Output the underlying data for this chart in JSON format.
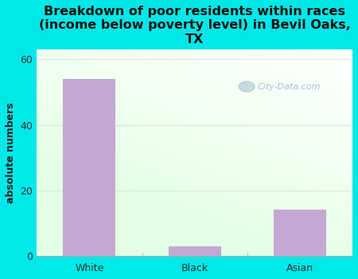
{
  "title": "Breakdown of poor residents within races\n(income below poverty level) in Bevil Oaks,\nTX",
  "categories": [
    "White",
    "Black",
    "Asian"
  ],
  "values": [
    54,
    3,
    14
  ],
  "bar_color": "#c4a8d4",
  "bar_edgecolor": "#c4a8d4",
  "ylabel": "absolute numbers",
  "ylim": [
    0,
    63
  ],
  "yticks": [
    0,
    20,
    40,
    60
  ],
  "background_color": "#00e8e8",
  "title_color": "#111111",
  "title_fontsize": 11.5,
  "axis_label_fontsize": 9,
  "tick_fontsize": 9,
  "watermark_text": "City-Data.com",
  "watermark_color": "#9ab8c8",
  "grid_color": "#d8e8d8",
  "bar_width": 0.5
}
